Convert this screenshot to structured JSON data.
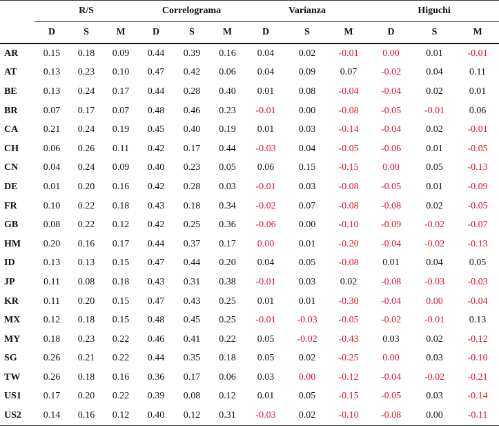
{
  "table": {
    "groups": [
      "R/S",
      "Correlograma",
      "Varianza",
      "Higuchi"
    ],
    "subheaders": [
      "D",
      "S",
      "M"
    ],
    "rows": [
      {
        "label": "AR",
        "cells": [
          "0.15",
          "0.18",
          "0.09",
          "0.44",
          "0.39",
          "0.16",
          "0.04",
          "0.02",
          {
            "text": "-0.01",
            "color": "#e0102a"
          },
          {
            "text": "0.00",
            "color": "#e0102a"
          },
          "0.01",
          {
            "text": "-0.01",
            "color": "#e0102a"
          }
        ]
      },
      {
        "label": "AT",
        "cells": [
          "0.13",
          "0.23",
          "0.10",
          "0.47",
          "0.42",
          "0.06",
          "0.04",
          "0.09",
          "0.07",
          {
            "text": "-0.02",
            "color": "#e0102a"
          },
          "0.04",
          "0.11"
        ]
      },
      {
        "label": "BE",
        "cells": [
          "0.13",
          "0.24",
          "0.17",
          "0.44",
          "0.28",
          "0.40",
          "0.01",
          "0.08",
          {
            "text": "-0.04",
            "color": "#e0102a"
          },
          {
            "text": "-0.04",
            "color": "#e0102a"
          },
          "0.02",
          "0.01"
        ]
      },
      {
        "label": "BR",
        "cells": [
          "0.07",
          "0.17",
          "0.07",
          "0.48",
          "0.46",
          "0.23",
          {
            "text": "-0.01",
            "color": "#e0102a"
          },
          "0.00",
          {
            "text": "-0.08",
            "color": "#e0102a"
          },
          {
            "text": "-0.05",
            "color": "#e0102a"
          },
          {
            "text": "-0.01",
            "color": "#e0102a"
          },
          "0.06"
        ]
      },
      {
        "label": "CA",
        "cells": [
          "0.21",
          "0.24",
          "0.19",
          "0.45",
          "0.40",
          "0.19",
          "0.01",
          "0.03",
          {
            "text": "-0.14",
            "color": "#e0102a"
          },
          {
            "text": "-0.04",
            "color": "#e0102a"
          },
          "0.02",
          {
            "text": "-0.01",
            "color": "#e0102a"
          }
        ]
      },
      {
        "label": "CH",
        "cells": [
          "0.06",
          "0.26",
          "0.11",
          "0.42",
          "0.17",
          "0.44",
          {
            "text": "-0.03",
            "color": "#e0102a"
          },
          "0.04",
          {
            "text": "-0.05",
            "color": "#e0102a"
          },
          {
            "text": "-0.06",
            "color": "#e0102a"
          },
          "0.01",
          {
            "text": "-0.05",
            "color": "#e0102a"
          }
        ]
      },
      {
        "label": "CN",
        "cells": [
          "0.04",
          "0.24",
          "0.09",
          "0.40",
          "0.23",
          "0.05",
          "0.06",
          "0.15",
          {
            "text": "-0.15",
            "color": "#e0102a"
          },
          {
            "text": "0.00",
            "color": "#e0102a"
          },
          "0.05",
          {
            "text": "-0.13",
            "color": "#e0102a"
          }
        ]
      },
      {
        "label": "DE",
        "cells": [
          "0.01",
          "0.20",
          "0.16",
          "0.42",
          "0.28",
          "0.03",
          {
            "text": "-0.01",
            "color": "#e0102a"
          },
          "0.03",
          {
            "text": "-0.08",
            "color": "#e0102a"
          },
          {
            "text": "-0.05",
            "color": "#e0102a"
          },
          "0.01",
          {
            "text": "-0.09",
            "color": "#e0102a"
          }
        ]
      },
      {
        "label": "FR",
        "cells": [
          "0.10",
          "0.22",
          "0.18",
          "0.43",
          "0.18",
          "0.34",
          {
            "text": "-0.02",
            "color": "#e0102a"
          },
          "0.07",
          {
            "text": "-0.08",
            "color": "#e0102a"
          },
          {
            "text": "-0.08",
            "color": "#e0102a"
          },
          "0.02",
          {
            "text": "-0.05",
            "color": "#e0102a"
          }
        ]
      },
      {
        "label": "GB",
        "cells": [
          "0.08",
          "0.22",
          "0.12",
          "0.42",
          "0.25",
          "0.36",
          {
            "text": "-0.06",
            "color": "#e0102a"
          },
          "0.00",
          {
            "text": "-0.10",
            "color": "#e0102a"
          },
          {
            "text": "-0.09",
            "color": "#e0102a"
          },
          {
            "text": "-0.02",
            "color": "#e0102a"
          },
          {
            "text": "-0.07",
            "color": "#e0102a"
          }
        ]
      },
      {
        "label": "HM",
        "cells": [
          "0.20",
          "0.16",
          "0.17",
          "0.44",
          "0.37",
          "0.17",
          {
            "text": "0.00",
            "color": "#e0102a"
          },
          "0.01",
          {
            "text": "-0.20",
            "color": "#e0102a"
          },
          {
            "text": "-0.04",
            "color": "#e0102a"
          },
          {
            "text": "-0.02",
            "color": "#e0102a"
          },
          {
            "text": "-0.13",
            "color": "#e0102a"
          }
        ]
      },
      {
        "label": "ID",
        "cells": [
          "0.13",
          "0.13",
          "0.15",
          "0.47",
          "0.44",
          "0.20",
          "0.04",
          "0.05",
          {
            "text": "-0.08",
            "color": "#e0102a"
          },
          "0.01",
          "0.04",
          "0.05"
        ]
      },
      {
        "label": "JP",
        "cells": [
          "0.11",
          "0.08",
          "0.18",
          "0.43",
          "0.31",
          "0.38",
          {
            "text": "-0.01",
            "color": "#e0102a"
          },
          "0.03",
          "0.02",
          {
            "text": "-0.08",
            "color": "#e0102a"
          },
          {
            "text": "-0.03",
            "color": "#e0102a"
          },
          {
            "text": "-0.03",
            "color": "#e0102a"
          }
        ]
      },
      {
        "label": "KR",
        "cells": [
          "0.11",
          "0.20",
          "0.15",
          "0.47",
          "0.43",
          "0.25",
          "0.01",
          "0.01",
          {
            "text": "-0.30",
            "color": "#e0102a"
          },
          {
            "text": "-0.04",
            "color": "#e0102a"
          },
          {
            "text": "0.00",
            "color": "#e0102a"
          },
          {
            "text": "-0.04",
            "color": "#e0102a"
          }
        ]
      },
      {
        "label": "MX",
        "cells": [
          "0.12",
          "0.18",
          "0.15",
          "0.48",
          "0.45",
          "0.25",
          {
            "text": "-0.01",
            "color": "#e0102a"
          },
          {
            "text": "-0.03",
            "color": "#e0102a"
          },
          {
            "text": "-0.05",
            "color": "#e0102a"
          },
          {
            "text": "-0.02",
            "color": "#e0102a"
          },
          {
            "text": "-0.01",
            "color": "#e0102a"
          },
          "0.13"
        ]
      },
      {
        "label": "MY",
        "cells": [
          "0.18",
          "0.23",
          "0.22",
          "0.46",
          "0.41",
          "0.22",
          "0.05",
          {
            "text": "-0.02",
            "color": "#e0102a"
          },
          {
            "text": "-0.43",
            "color": "#e0102a"
          },
          "0.03",
          "0.02",
          {
            "text": "-0.12",
            "color": "#e0102a"
          }
        ]
      },
      {
        "label": "SG",
        "cells": [
          "0.26",
          "0.21",
          "0.22",
          "0.44",
          "0.35",
          "0.18",
          "0.05",
          "0.02",
          {
            "text": "-0.25",
            "color": "#e0102a"
          },
          {
            "text": "0.00",
            "color": "#e0102a"
          },
          "0.03",
          {
            "text": "-0.10",
            "color": "#e0102a"
          }
        ]
      },
      {
        "label": "TW",
        "cells": [
          "0.26",
          "0.18",
          "0.16",
          "0.36",
          "0.17",
          "0.06",
          "0.03",
          {
            "text": "0.00",
            "color": "#e0102a"
          },
          {
            "text": "-0.12",
            "color": "#e0102a"
          },
          {
            "text": "-0.04",
            "color": "#e0102a"
          },
          {
            "text": "-0.02",
            "color": "#e0102a"
          },
          {
            "text": "-0.21",
            "color": "#e0102a"
          }
        ]
      },
      {
        "label": "US1",
        "cells": [
          "0.17",
          "0.20",
          "0.22",
          "0.39",
          "0.08",
          "0.12",
          "0.01",
          "0.05",
          {
            "text": "-0.15",
            "color": "#e0102a"
          },
          {
            "text": "-0.05",
            "color": "#e0102a"
          },
          "0.03",
          {
            "text": "-0.14",
            "color": "#e0102a"
          }
        ]
      },
      {
        "label": "US2",
        "cells": [
          "0.14",
          "0.16",
          "0.12",
          "0.40",
          "0.12",
          "0.31",
          {
            "text": "-0.03",
            "color": "#e0102a"
          },
          "0.02",
          {
            "text": "-0.10",
            "color": "#e0102a"
          },
          {
            "text": "-0.08",
            "color": "#e0102a"
          },
          "0.00",
          {
            "text": "-0.11",
            "color": "#e0102a"
          }
        ]
      }
    ]
  }
}
